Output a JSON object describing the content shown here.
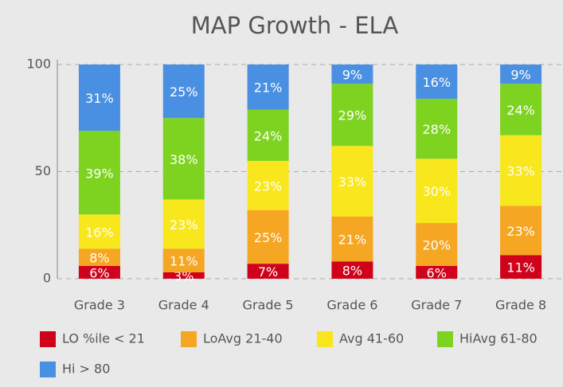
{
  "chart_data": {
    "type": "stacked_bar",
    "title": "MAP Growth - ELA",
    "categories": [
      "Grade 3",
      "Grade 4",
      "Grade 5",
      "Grade 6",
      "Grade 7",
      "Grade 8"
    ],
    "series": [
      {
        "name": "LO %ile < 21",
        "color": "#d0021b",
        "values": [
          6,
          3,
          7,
          8,
          6,
          11
        ],
        "value_labels": [
          "6%",
          "3%",
          "7%",
          "8%",
          "6%",
          "11%"
        ]
      },
      {
        "name": "LoAvg 21-40",
        "color": "#f5a623",
        "values": [
          8,
          11,
          25,
          21,
          20,
          23
        ],
        "value_labels": [
          "8%",
          "11%",
          "25%",
          "21%",
          "20%",
          "23%"
        ]
      },
      {
        "name": "Avg 41-60",
        "color": "#f8e71c",
        "values": [
          16,
          23,
          23,
          33,
          30,
          33
        ],
        "value_labels": [
          "16%",
          "23%",
          "23%",
          "33%",
          "30%",
          "33%"
        ]
      },
      {
        "name": "HiAvg 61-80",
        "color": "#7ed321",
        "values": [
          39,
          38,
          24,
          29,
          28,
          24
        ],
        "value_labels": [
          "39%",
          "38%",
          "24%",
          "29%",
          "28%",
          "24%"
        ]
      },
      {
        "name": "Hi > 80",
        "color": "#4a90e2",
        "values": [
          31,
          25,
          21,
          9,
          16,
          9
        ],
        "value_labels": [
          "31%",
          "25%",
          "21%",
          "9%",
          "16%",
          "9%"
        ]
      }
    ],
    "ylim": [
      0,
      100
    ],
    "yticks": [
      0,
      50,
      100
    ],
    "grid": true
  }
}
